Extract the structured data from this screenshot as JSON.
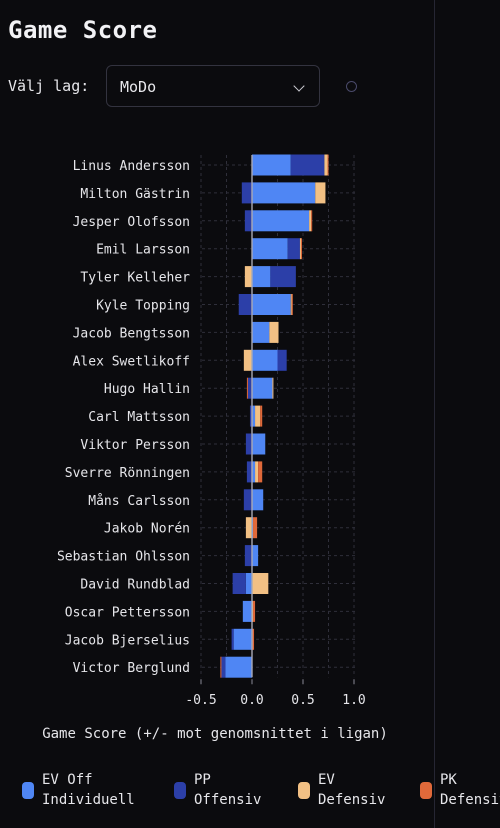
{
  "page": {
    "title": "Game Score"
  },
  "team_select": {
    "label": "Välj lag:",
    "value": "MoDo"
  },
  "chart_data": {
    "type": "bar",
    "orientation": "horizontal",
    "stacked": true,
    "xlabel": "Game Score (+/- mot genomsnittet i ligan)",
    "xlim": [
      -0.5,
      1.0
    ],
    "xticks": [
      "-0.5",
      "0.0",
      "0.5",
      "1.0"
    ],
    "grid": true,
    "legend_position": "bottom",
    "categories": [
      "Linus Andersson",
      "Milton Gästrin",
      "Jesper Olofsson",
      "Emil Larsson",
      "Tyler Kelleher",
      "Kyle Topping",
      "Jacob Bengtsson",
      "Alex Swetlikoff",
      "Hugo Hallin",
      "Carl Mattsson",
      "Viktor Persson",
      "Sverre Rönningen",
      "Måns Carlsson",
      "Jakob Norén",
      "Sebastian Ohlsson",
      "David Rundblad",
      "Oscar Pettersson",
      "Jacob Bjerselius",
      "Victor Berglund"
    ],
    "series": [
      {
        "name": "EV Off Individuell",
        "color": "#4f86f4",
        "values": [
          0.38,
          0.62,
          0.56,
          0.35,
          0.18,
          0.38,
          0.17,
          0.25,
          0.2,
          0.03,
          0.13,
          0.03,
          0.11,
          0.01,
          0.06,
          -0.06,
          -0.09,
          -0.18,
          -0.26
        ]
      },
      {
        "name": "PP Offensiv",
        "color": "#2c3fa8",
        "values": [
          0.33,
          -0.1,
          -0.07,
          0.12,
          0.25,
          -0.13,
          0.0,
          0.09,
          -0.04,
          -0.02,
          -0.06,
          -0.05,
          -0.08,
          0.0,
          -0.07,
          -0.13,
          0.0,
          -0.02,
          -0.04
        ]
      },
      {
        "name": "EV Defensiv",
        "color": "#f2c084",
        "values": [
          0.03,
          0.1,
          0.02,
          0.01,
          -0.07,
          0.01,
          0.09,
          -0.08,
          0.01,
          0.05,
          0.0,
          0.03,
          0.0,
          -0.06,
          0.0,
          0.16,
          0.01,
          0.0,
          0.0
        ]
      },
      {
        "name": "PK Defensiv",
        "color": "#e0693a",
        "values": [
          0.01,
          0.0,
          0.01,
          0.01,
          0.0,
          0.01,
          0.0,
          0.0,
          -0.01,
          0.02,
          0.0,
          0.04,
          0.0,
          0.04,
          0.0,
          0.0,
          0.02,
          0.02,
          -0.01
        ]
      }
    ]
  },
  "legend": [
    {
      "label": "EV Off\nIndividuell",
      "color": "#4f86f4"
    },
    {
      "label": "PP\nOffensiv",
      "color": "#2c3fa8"
    },
    {
      "label": "EV\nDefensiv",
      "color": "#f2c084"
    },
    {
      "label": "PK\nDefensiv",
      "color": "#e0693a"
    }
  ]
}
